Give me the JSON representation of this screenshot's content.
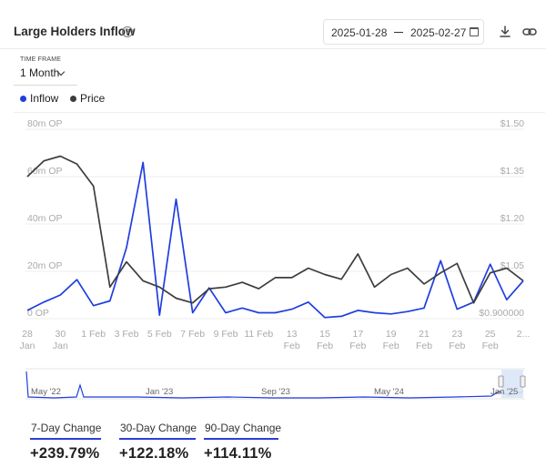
{
  "header": {
    "title": "Large Holders Inflow",
    "help_icon": "question-circle-icon",
    "date_start": "2025-01-28",
    "date_end": "2025-02-27",
    "calendar_icon": "calendar-icon",
    "download_icon": "download-icon",
    "link_icon": "link-icon"
  },
  "timeframe": {
    "label": "TIME FRAME",
    "value": "1 Month"
  },
  "legend": [
    {
      "label": "Inflow",
      "color": "#1f3ee0"
    },
    {
      "label": "Price",
      "color": "#3d3d3d"
    }
  ],
  "chart_data": {
    "type": "line",
    "x": [
      "28 Jan",
      "29 Jan",
      "30 Jan",
      "31 Jan",
      "1 Feb",
      "2 Feb",
      "3 Feb",
      "4 Feb",
      "5 Feb",
      "6 Feb",
      "7 Feb",
      "8 Feb",
      "9 Feb",
      "10 Feb",
      "11 Feb",
      "12 Feb",
      "13 Feb",
      "14 Feb",
      "15 Feb",
      "16 Feb",
      "17 Feb",
      "18 Feb",
      "19 Feb",
      "20 Feb",
      "21 Feb",
      "22 Feb",
      "23 Feb",
      "24 Feb",
      "25 Feb",
      "26 Feb",
      "27 Feb"
    ],
    "x_tick_labels": [
      {
        "x": "28 Jan",
        "line1": "28",
        "line2": "Jan"
      },
      {
        "x": "30 Jan",
        "line1": "30",
        "line2": "Jan"
      },
      {
        "x": "1 Feb",
        "line1": "1 Feb",
        "line2": ""
      },
      {
        "x": "3 Feb",
        "line1": "3 Feb",
        "line2": ""
      },
      {
        "x": "5 Feb",
        "line1": "5 Feb",
        "line2": ""
      },
      {
        "x": "7 Feb",
        "line1": "7 Feb",
        "line2": ""
      },
      {
        "x": "9 Feb",
        "line1": "9 Feb",
        "line2": ""
      },
      {
        "x": "11 Feb",
        "line1": "11 Feb",
        "line2": ""
      },
      {
        "x": "13 Feb",
        "line1": "13",
        "line2": "Feb"
      },
      {
        "x": "15 Feb",
        "line1": "15",
        "line2": "Feb"
      },
      {
        "x": "17 Feb",
        "line1": "17",
        "line2": "Feb"
      },
      {
        "x": "19 Feb",
        "line1": "19",
        "line2": "Feb"
      },
      {
        "x": "21 Feb",
        "line1": "21",
        "line2": "Feb"
      },
      {
        "x": "23 Feb",
        "line1": "23",
        "line2": "Feb"
      },
      {
        "x": "25 Feb",
        "line1": "25",
        "line2": "Feb"
      },
      {
        "x": "27 Feb",
        "line1": "2...",
        "line2": ""
      }
    ],
    "y_left": {
      "range": [
        0,
        80000000
      ],
      "ticks": [
        0,
        20000000,
        40000000,
        60000000,
        80000000
      ],
      "tick_labels": [
        "0 OP",
        "20m OP",
        "40m OP",
        "60m OP",
        "80m OP"
      ]
    },
    "y_right": {
      "range": [
        0.9,
        1.5
      ],
      "ticks": [
        0.9,
        1.05,
        1.2,
        1.35,
        1.5
      ],
      "tick_labels": [
        "$0.900000",
        "$1.05",
        "$1.20",
        "$1.35",
        "$1.50"
      ]
    },
    "grid": "horizontal",
    "legend_position": "top-left",
    "series": [
      {
        "name": "Inflow",
        "axis": "left",
        "color": "#1f3ee0",
        "values": [
          3500000,
          7000000,
          10000000,
          16500000,
          5500000,
          7500000,
          30000000,
          66000000,
          1500000,
          50500000,
          2500000,
          13000000,
          2500000,
          4500000,
          2500000,
          2500000,
          4000000,
          7000000,
          500000,
          1000000,
          3500000,
          2500000,
          2000000,
          3000000,
          4500000,
          24500000,
          4000000,
          7000000,
          23000000,
          8000000,
          16000000
        ]
      },
      {
        "name": "Price",
        "axis": "right",
        "color": "#3d3d3d",
        "values": [
          1.35,
          1.4,
          1.415,
          1.39,
          1.32,
          1.0,
          1.08,
          1.02,
          1.0,
          0.965,
          0.95,
          0.995,
          1.0,
          1.015,
          0.995,
          1.03,
          1.03,
          1.06,
          1.04,
          1.025,
          1.105,
          1.0,
          1.04,
          1.06,
          1.01,
          1.045,
          1.075,
          0.95,
          1.045,
          1.06,
          1.02
        ]
      }
    ],
    "navigator": {
      "labels": [
        "May '22",
        "Jan '23",
        "Sep '23",
        "May '24",
        "Jan '25"
      ],
      "series_color": "#1f3ee0"
    }
  },
  "changes": [
    {
      "label": "7-Day Change",
      "value": "+239.79%"
    },
    {
      "label": "30-Day Change",
      "value": "+122.18%"
    },
    {
      "label": "90-Day Change",
      "value": "+114.11%"
    }
  ]
}
